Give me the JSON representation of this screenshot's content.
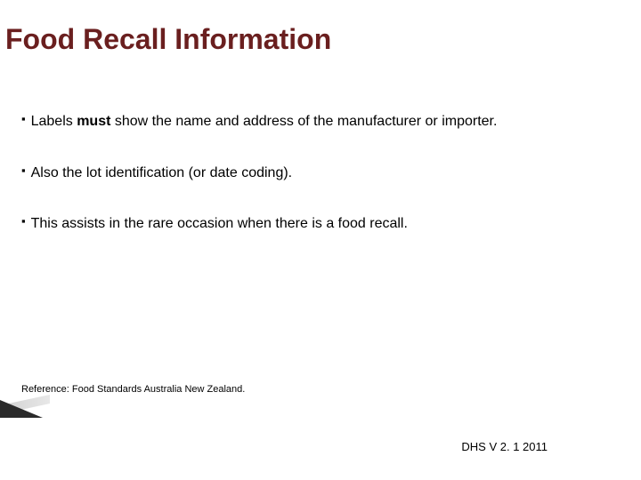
{
  "title": "Food Recall Information",
  "bullets": [
    {
      "prefix": "Labels ",
      "bold": "must",
      "suffix": " show the name and address of the manufacturer or importer."
    },
    {
      "text": "Also the lot identification (or date coding)."
    },
    {
      "text": "This assists in the rare occasion when there is a food recall."
    }
  ],
  "reference": "Reference: Food Standards Australia New Zealand.",
  "footer": "DHS V 2. 1 2011",
  "colors": {
    "title_color": "#6a1f1f",
    "text_color": "#000000",
    "background": "#ffffff"
  },
  "typography": {
    "title_fontsize": 32,
    "body_fontsize": 16,
    "reference_fontsize": 11,
    "footer_fontsize": 13
  }
}
